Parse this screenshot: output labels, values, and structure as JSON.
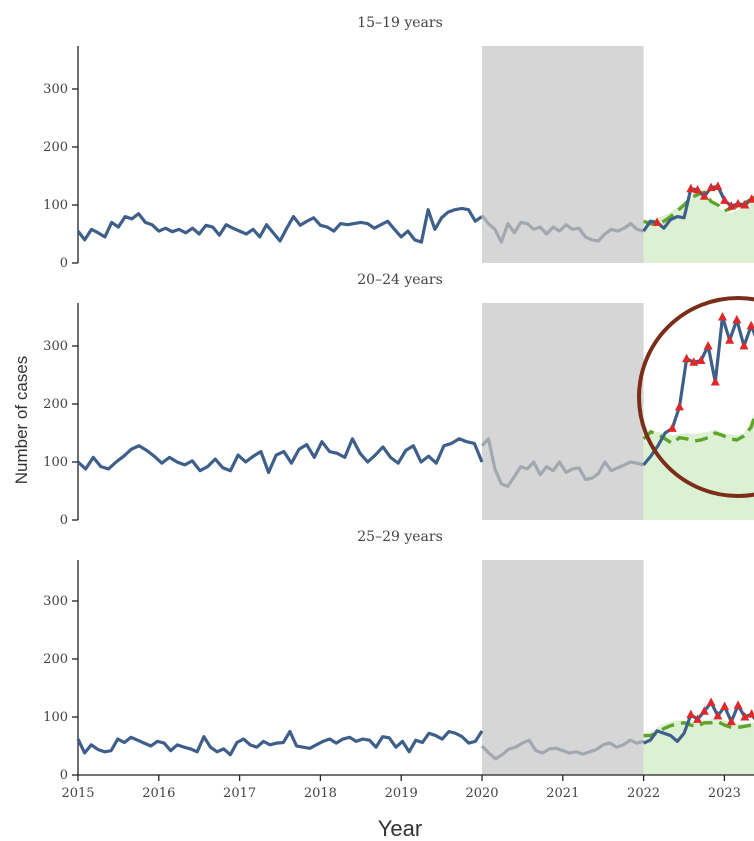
{
  "chart_data": {
    "type": "line",
    "xlabel": "Year",
    "ylabel": "Number of cases",
    "x_ticks": [
      "2015",
      "2016",
      "2017",
      "2018",
      "2019",
      "2020",
      "2021",
      "2022",
      "2023"
    ],
    "y_ticks": [
      "0",
      "100",
      "200",
      "300"
    ],
    "ylim": [
      0,
      370
    ],
    "xlim": [
      2015,
      2023.42
    ],
    "pandemic_period": [
      2020,
      2022
    ],
    "colors": {
      "observed": "#3d5f8a",
      "pandemic": "#a3a7b0",
      "expected": "#5ea52a",
      "band": "#dcf0d4",
      "shade": "#d6d6d6",
      "excess_marker": "#e02828",
      "highlight_circle": "#7a2e17"
    },
    "panels": [
      {
        "title": "15–19 years",
        "observed": [
          55,
          40,
          58,
          52,
          45,
          70,
          62,
          80,
          76,
          85,
          70,
          66,
          55,
          60,
          54,
          58,
          52,
          60,
          50,
          65,
          62,
          48,
          66,
          60,
          55,
          50,
          58,
          45,
          66,
          52,
          38,
          60,
          80,
          65,
          72,
          78,
          65,
          62,
          55,
          68,
          66,
          68,
          70,
          68,
          60,
          66,
          72,
          58,
          45,
          55,
          40,
          36,
          92,
          58,
          78,
          88,
          92,
          94,
          92,
          72,
          80
        ],
        "pandemic": [
          82,
          68,
          58,
          36,
          68,
          52,
          70,
          68,
          58,
          62,
          50,
          62,
          55,
          66,
          58,
          60,
          45,
          40,
          38,
          50,
          58,
          55,
          60,
          68,
          58,
          55
        ],
        "recent": [
          55,
          72,
          70,
          60,
          75,
          80,
          78,
          128,
          126,
          115,
          130,
          132,
          108,
          98,
          102,
          100,
          110,
          105
        ],
        "expected": [
          72,
          68,
          66,
          72,
          80,
          90,
          100,
          112,
          118,
          122,
          106,
          100,
          90,
          94,
          98,
          104,
          110,
          122
        ],
        "band": [
          72,
          74,
          78,
          82,
          88,
          96,
          106,
          112,
          118,
          116,
          106,
          96,
          88,
          86,
          92,
          100,
          110,
          125
        ],
        "excess_months": [
          2,
          7,
          8,
          9,
          10,
          11,
          12,
          13,
          14,
          15,
          16,
          17
        ],
        "highlight": false
      },
      {
        "title": "20–24 years",
        "observed": [
          100,
          88,
          108,
          92,
          88,
          100,
          110,
          122,
          128,
          120,
          110,
          98,
          108,
          100,
          95,
          102,
          85,
          92,
          105,
          90,
          85,
          112,
          100,
          110,
          118,
          82,
          112,
          118,
          98,
          122,
          130,
          108,
          135,
          118,
          115,
          108,
          140,
          115,
          100,
          112,
          126,
          108,
          98,
          120,
          128,
          100,
          110,
          98,
          128,
          132,
          140,
          135,
          132,
          100
        ],
        "pandemic": [
          128,
          140,
          88,
          62,
          58,
          75,
          92,
          88,
          100,
          78,
          92,
          85,
          100,
          82,
          88,
          90,
          70,
          72,
          80,
          100,
          85,
          90,
          95,
          100,
          98,
          95
        ],
        "recent": [
          95,
          110,
          128,
          150,
          158,
          195,
          278,
          272,
          275,
          300,
          238,
          350,
          310,
          345,
          300,
          335,
          305
        ],
        "expected": [
          140,
          152,
          148,
          140,
          132,
          142,
          140,
          136,
          138,
          142,
          150,
          146,
          140,
          138,
          145,
          160,
          200,
          215
        ],
        "band": [
          140,
          150,
          152,
          148,
          146,
          148,
          150,
          148,
          150,
          152,
          156,
          150,
          148,
          146,
          150,
          170,
          200,
          220
        ],
        "excess_months": [
          4,
          5,
          6,
          7,
          8,
          9,
          10,
          11,
          12,
          13,
          14,
          15,
          16
        ],
        "highlight": true
      },
      {
        "title": "25–29 years",
        "observed": [
          62,
          38,
          52,
          44,
          40,
          42,
          62,
          56,
          65,
          60,
          55,
          50,
          58,
          55,
          42,
          52,
          48,
          45,
          40,
          66,
          48,
          40,
          45,
          35,
          56,
          62,
          52,
          48,
          58,
          52,
          55,
          56,
          75,
          50,
          48,
          46,
          52,
          58,
          62,
          55,
          62,
          65,
          58,
          62,
          60,
          48,
          66,
          64,
          48,
          58,
          40,
          60,
          56,
          72,
          68,
          62,
          75,
          72,
          66,
          55,
          58,
          76
        ],
        "pandemic": [
          50,
          38,
          28,
          35,
          45,
          48,
          55,
          60,
          42,
          38,
          45,
          46,
          42,
          38,
          40,
          36,
          40,
          44,
          52,
          55,
          48,
          52,
          60,
          55,
          58
        ],
        "recent": [
          55,
          60,
          76,
          72,
          68,
          58,
          72,
          104,
          96,
          110,
          125,
          102,
          118,
          92,
          120,
          100,
          105,
          88
        ],
        "expected": [
          68,
          68,
          72,
          80,
          85,
          88,
          90,
          86,
          84,
          90,
          90,
          92,
          86,
          82,
          82,
          84,
          86,
          88
        ],
        "band": [
          70,
          74,
          82,
          88,
          92,
          94,
          94,
          92,
          90,
          94,
          96,
          98,
          94,
          90,
          88,
          88,
          90,
          92
        ],
        "excess_months": [
          7,
          8,
          9,
          10,
          11,
          12,
          13,
          14,
          15,
          16,
          17
        ],
        "highlight": false
      }
    ]
  }
}
